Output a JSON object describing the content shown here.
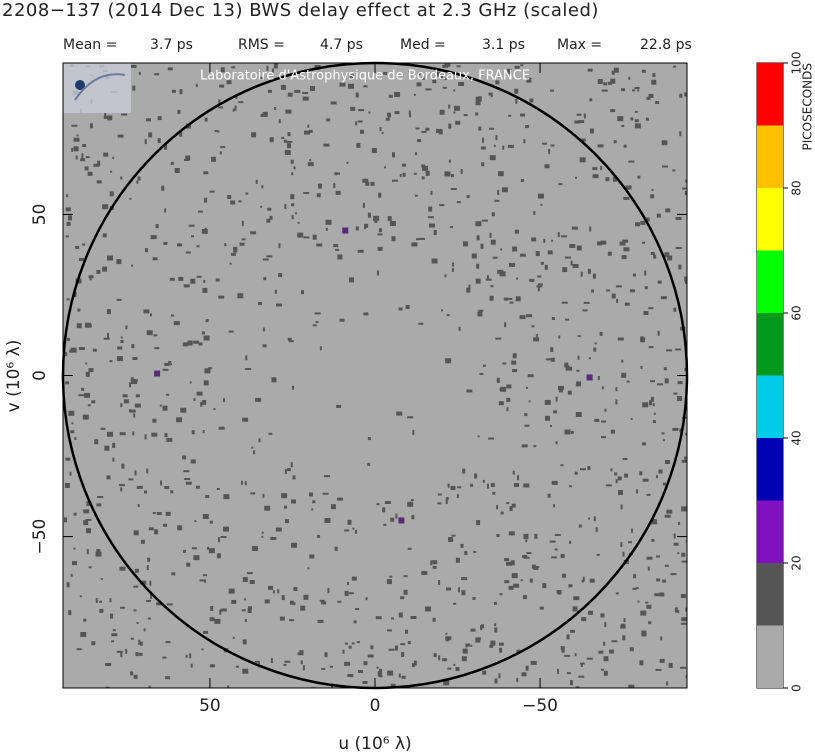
{
  "chart_data": {
    "type": "heatmap",
    "title": "2208−137  (2014 Dec 13)   BWS delay effect at  2.3 GHz (scaled)",
    "stats": [
      {
        "label": "Mean =",
        "value": "3.7 ps"
      },
      {
        "label": "RMS =",
        "value": "4.7 ps"
      },
      {
        "label": "Med =",
        "value": "3.1 ps"
      },
      {
        "label": "Max =",
        "value": "22.8 ps"
      }
    ],
    "watermark": "Laboratoire d'Astrophysique de Bordeaux, FRANCE",
    "x_label": "u  (10⁶ λ)",
    "y_label": "v  (10⁶ λ)",
    "xlim": [
      94.5,
      -94.5
    ],
    "ylim": [
      -97,
      97
    ],
    "xticks": [
      50,
      0,
      {
        "value": -50,
        "label": "−50"
      }
    ],
    "yticks": [
      {
        "value": -50,
        "label": "−50"
      },
      0,
      50
    ],
    "background_color": "#aaaaaa",
    "speckle_color": "#555555",
    "points": {
      "color": "#5a2a7a",
      "x": [
        66,
        9,
        -8,
        -65
      ],
      "y": [
        0.6,
        45,
        -45,
        -0.6
      ]
    },
    "colorbar": {
      "label": "PICOSECONDS",
      "lim": [
        0,
        100
      ],
      "ticks": [
        0,
        20,
        40,
        60,
        80,
        100
      ],
      "bins": [
        0,
        10,
        20,
        30,
        40,
        50,
        60,
        70,
        80,
        90,
        100
      ],
      "colors": [
        "#aaaaaa",
        "#555555",
        "#7f0fbf",
        "#0000b3",
        "#00ccea",
        "#00991a",
        "#00ff00",
        "#ffff00",
        "#ffc000",
        "#ff0000"
      ]
    }
  }
}
